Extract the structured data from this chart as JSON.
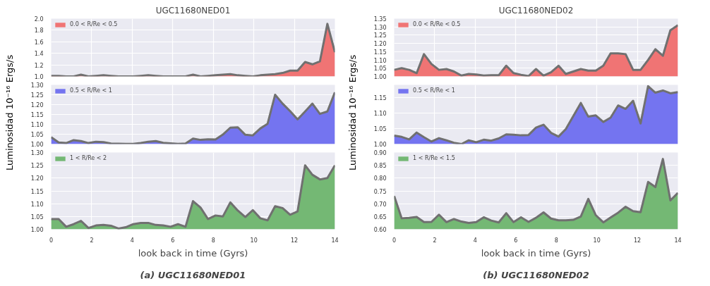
{
  "chart_data": [
    {
      "type": "area",
      "title": "UGC11680NED01",
      "legend": "top left",
      "grid": true,
      "tick_labels": "y",
      "xlim": [
        0,
        14
      ],
      "xticks": [
        0,
        2,
        4,
        6,
        8,
        10,
        12,
        14
      ],
      "ylim": [
        1.0,
        2.0
      ],
      "yticks": [
        {
          "value": 1.0,
          "label": "1.0"
        },
        {
          "value": 1.2,
          "label": "1.2"
        },
        {
          "value": 1.4,
          "label": "1.4"
        },
        {
          "value": 1.6,
          "label": "1.6"
        },
        {
          "value": 1.8,
          "label": "1.8"
        },
        {
          "value": 2.0,
          "label": "2.0"
        }
      ],
      "x": [
        0,
        0.37,
        0.74,
        1.11,
        1.47,
        1.84,
        2.21,
        2.58,
        2.95,
        3.32,
        3.68,
        4.05,
        4.42,
        4.79,
        5.16,
        5.53,
        5.89,
        6.26,
        6.63,
        7.0,
        7.37,
        7.74,
        8.11,
        8.47,
        8.84,
        9.21,
        9.58,
        9.95,
        10.32,
        10.68,
        11.05,
        11.42,
        11.79,
        12.16,
        12.53,
        12.89,
        13.26,
        13.63,
        14.0
      ],
      "series": [
        {
          "name": "0.0 < R/Re < 0.5",
          "color": "#f07474",
          "values": [
            1.01,
            1.01,
            1.0,
            1.0,
            1.03,
            1.0,
            1.01,
            1.02,
            1.01,
            1.0,
            1.0,
            1.0,
            1.01,
            1.02,
            1.01,
            1.0,
            1.0,
            1.0,
            1.0,
            1.03,
            1.0,
            1.01,
            1.02,
            1.03,
            1.04,
            1.02,
            1.01,
            1.0,
            1.02,
            1.03,
            1.04,
            1.06,
            1.1,
            1.1,
            1.25,
            1.21,
            1.26,
            1.91,
            1.42
          ]
        }
      ]
    },
    {
      "type": "area",
      "title": "UGC11680NED02",
      "legend": "top left",
      "grid": true,
      "tick_labels": "y",
      "xlim": [
        0,
        14
      ],
      "xticks": [
        0,
        2,
        4,
        6,
        8,
        10,
        12,
        14
      ],
      "ylim": [
        1.0,
        1.35
      ],
      "yticks": [
        {
          "value": 1.0,
          "label": "1.00"
        },
        {
          "value": 1.05,
          "label": "1.05"
        },
        {
          "value": 1.1,
          "label": "1.10"
        },
        {
          "value": 1.15,
          "label": "1.15"
        },
        {
          "value": 1.2,
          "label": "1.20"
        },
        {
          "value": 1.25,
          "label": "1.25"
        },
        {
          "value": 1.3,
          "label": "1.30"
        },
        {
          "value": 1.35,
          "label": "1.35"
        }
      ],
      "x": [
        0,
        0.37,
        0.74,
        1.11,
        1.47,
        1.84,
        2.21,
        2.58,
        2.95,
        3.32,
        3.68,
        4.05,
        4.42,
        4.79,
        5.16,
        5.53,
        5.89,
        6.26,
        6.63,
        7.0,
        7.37,
        7.74,
        8.11,
        8.47,
        8.84,
        9.21,
        9.58,
        9.95,
        10.32,
        10.68,
        11.05,
        11.42,
        11.79,
        12.16,
        12.53,
        12.89,
        13.26,
        13.63,
        14.0
      ],
      "series": [
        {
          "name": "0.0 < R/Re < 0.5",
          "color": "#f07474",
          "values": [
            1.04,
            1.05,
            1.04,
            1.02,
            1.135,
            1.075,
            1.04,
            1.045,
            1.03,
            1.005,
            1.015,
            1.012,
            1.005,
            1.007,
            1.007,
            1.065,
            1.02,
            1.01,
            1.002,
            1.045,
            1.005,
            1.025,
            1.065,
            1.015,
            1.03,
            1.045,
            1.035,
            1.035,
            1.065,
            1.14,
            1.14,
            1.135,
            1.04,
            1.04,
            1.1,
            1.165,
            1.125,
            1.28,
            1.31
          ]
        }
      ]
    },
    {
      "type": "area",
      "ylabel": "Luminosidad 10⁻¹⁶ Ergs/s",
      "legend": "top left",
      "grid": true,
      "tick_labels": "y",
      "xlim": [
        0,
        14
      ],
      "xticks": [
        0,
        2,
        4,
        6,
        8,
        10,
        12,
        14
      ],
      "ylim": [
        1.0,
        1.3
      ],
      "yticks": [
        {
          "value": 1.0,
          "label": "1.00"
        },
        {
          "value": 1.05,
          "label": "1.05"
        },
        {
          "value": 1.1,
          "label": "1.10"
        },
        {
          "value": 1.15,
          "label": "1.15"
        },
        {
          "value": 1.2,
          "label": "1.20"
        },
        {
          "value": 1.25,
          "label": "1.25"
        },
        {
          "value": 1.3,
          "label": "1.30"
        }
      ],
      "x": [
        0,
        0.37,
        0.74,
        1.11,
        1.47,
        1.84,
        2.21,
        2.58,
        2.95,
        3.32,
        3.68,
        4.05,
        4.42,
        4.79,
        5.16,
        5.53,
        5.89,
        6.26,
        6.63,
        7.0,
        7.37,
        7.74,
        8.11,
        8.47,
        8.84,
        9.21,
        9.58,
        9.95,
        10.32,
        10.68,
        11.05,
        11.42,
        11.79,
        12.16,
        12.53,
        12.89,
        13.26,
        13.63,
        14.0
      ],
      "series": [
        {
          "name": "0.5 < R/Re < 1",
          "color": "#7474f0",
          "values": [
            1.035,
            1.008,
            1.005,
            1.02,
            1.015,
            1.005,
            1.012,
            1.01,
            1.003,
            1.002,
            1.001,
            1.001,
            1.005,
            1.012,
            1.015,
            1.006,
            1.004,
            1.001,
            1.003,
            1.028,
            1.021,
            1.024,
            1.023,
            1.048,
            1.083,
            1.085,
            1.047,
            1.044,
            1.079,
            1.103,
            1.25,
            1.205,
            1.167,
            1.125,
            1.165,
            1.205,
            1.153,
            1.165,
            1.262
          ]
        }
      ]
    },
    {
      "type": "area",
      "ylabel": "Luminosidad 10⁻¹⁶ Ergs/s",
      "legend": "top left",
      "grid": true,
      "tick_labels": "y",
      "xlim": [
        0,
        14
      ],
      "xticks": [
        0,
        2,
        4,
        6,
        8,
        10,
        12,
        14
      ],
      "ylim": [
        1.0,
        1.19
      ],
      "yticks": [
        {
          "value": 1.0,
          "label": "1.00"
        },
        {
          "value": 1.05,
          "label": "1.05"
        },
        {
          "value": 1.1,
          "label": "1.10"
        },
        {
          "value": 1.15,
          "label": "1.15"
        }
      ],
      "x": [
        0,
        0.37,
        0.74,
        1.11,
        1.47,
        1.84,
        2.21,
        2.58,
        2.95,
        3.32,
        3.68,
        4.05,
        4.42,
        4.79,
        5.16,
        5.53,
        5.89,
        6.26,
        6.63,
        7.0,
        7.37,
        7.74,
        8.11,
        8.47,
        8.84,
        9.21,
        9.58,
        9.95,
        10.32,
        10.68,
        11.05,
        11.42,
        11.79,
        12.16,
        12.53,
        12.89,
        13.26,
        13.63,
        14.0
      ],
      "series": [
        {
          "name": "0.5 < R/Re < 1",
          "color": "#7474f0",
          "values": [
            1.027,
            1.023,
            1.015,
            1.037,
            1.022,
            1.008,
            1.019,
            1.012,
            1.004,
            1.0,
            1.012,
            1.006,
            1.014,
            1.011,
            1.018,
            1.031,
            1.03,
            1.028,
            1.029,
            1.053,
            1.062,
            1.036,
            1.024,
            1.048,
            1.09,
            1.132,
            1.088,
            1.092,
            1.071,
            1.085,
            1.124,
            1.113,
            1.139,
            1.066,
            1.186,
            1.165,
            1.172,
            1.163,
            1.167
          ]
        }
      ]
    },
    {
      "type": "area",
      "xlabel": "look back in time (Gyrs)",
      "annotations": [
        "(a) UGC11680NED01"
      ],
      "legend": "top left",
      "grid": true,
      "xlim": [
        0,
        14
      ],
      "xticks": [
        0,
        2,
        4,
        6,
        8,
        10,
        12,
        14
      ],
      "ylim": [
        1.0,
        1.3
      ],
      "yticks": [
        {
          "value": 1.0,
          "label": "1.00"
        },
        {
          "value": 1.05,
          "label": "1.05"
        },
        {
          "value": 1.1,
          "label": "1.10"
        },
        {
          "value": 1.15,
          "label": "1.15"
        },
        {
          "value": 1.2,
          "label": "1.20"
        },
        {
          "value": 1.25,
          "label": "1.25"
        },
        {
          "value": 1.3,
          "label": "1.30"
        }
      ],
      "x": [
        0,
        0.37,
        0.74,
        1.11,
        1.47,
        1.84,
        2.21,
        2.58,
        2.95,
        3.32,
        3.68,
        4.05,
        4.42,
        4.79,
        5.16,
        5.53,
        5.89,
        6.26,
        6.63,
        7.0,
        7.37,
        7.74,
        8.11,
        8.47,
        8.84,
        9.21,
        9.58,
        9.95,
        10.32,
        10.68,
        11.05,
        11.42,
        11.79,
        12.16,
        12.53,
        12.89,
        13.26,
        13.63,
        14.0
      ],
      "series": [
        {
          "name": "1 < R/Re < 2",
          "color": "#74b874",
          "values": [
            1.04,
            1.04,
            1.01,
            1.02,
            1.033,
            1.005,
            1.015,
            1.017,
            1.014,
            1.003,
            1.008,
            1.02,
            1.025,
            1.025,
            1.017,
            1.015,
            1.01,
            1.02,
            1.01,
            1.11,
            1.085,
            1.04,
            1.054,
            1.05,
            1.105,
            1.073,
            1.048,
            1.075,
            1.043,
            1.035,
            1.09,
            1.083,
            1.057,
            1.07,
            1.25,
            1.213,
            1.195,
            1.2,
            1.25
          ]
        }
      ]
    },
    {
      "type": "area",
      "xlabel": "look back in time (Gyrs)",
      "annotations": [
        "(b) UGC11680NED02"
      ],
      "legend": "top left",
      "grid": true,
      "xlim": [
        0,
        14
      ],
      "xticks": [
        0,
        2,
        4,
        6,
        8,
        10,
        12,
        14
      ],
      "ylim": [
        0.6,
        0.9
      ],
      "yticks": [
        {
          "value": 0.6,
          "label": "0.60"
        },
        {
          "value": 0.65,
          "label": "0.65"
        },
        {
          "value": 0.7,
          "label": "0.70"
        },
        {
          "value": 0.75,
          "label": "0.75"
        },
        {
          "value": 0.8,
          "label": "0.80"
        },
        {
          "value": 0.85,
          "label": "0.85"
        },
        {
          "value": 0.9,
          "label": "0.90"
        }
      ],
      "x": [
        0,
        0.37,
        0.74,
        1.11,
        1.47,
        1.84,
        2.21,
        2.58,
        2.95,
        3.32,
        3.68,
        4.05,
        4.42,
        4.79,
        5.16,
        5.53,
        5.89,
        6.26,
        6.63,
        7.0,
        7.37,
        7.74,
        8.11,
        8.47,
        8.84,
        9.21,
        9.58,
        9.95,
        10.32,
        10.68,
        11.05,
        11.42,
        11.79,
        12.16,
        12.53,
        12.89,
        13.26,
        13.63,
        14.0
      ],
      "series": [
        {
          "name": "1 < R/Re < 1.5",
          "color": "#74b874",
          "values": [
            0.73,
            0.643,
            0.645,
            0.648,
            0.628,
            0.629,
            0.657,
            0.628,
            0.64,
            0.63,
            0.625,
            0.628,
            0.647,
            0.634,
            0.627,
            0.663,
            0.628,
            0.647,
            0.629,
            0.645,
            0.666,
            0.642,
            0.635,
            0.635,
            0.637,
            0.65,
            0.719,
            0.655,
            0.627,
            0.646,
            0.665,
            0.688,
            0.671,
            0.667,
            0.785,
            0.765,
            0.875,
            0.713,
            0.742
          ]
        }
      ]
    }
  ]
}
